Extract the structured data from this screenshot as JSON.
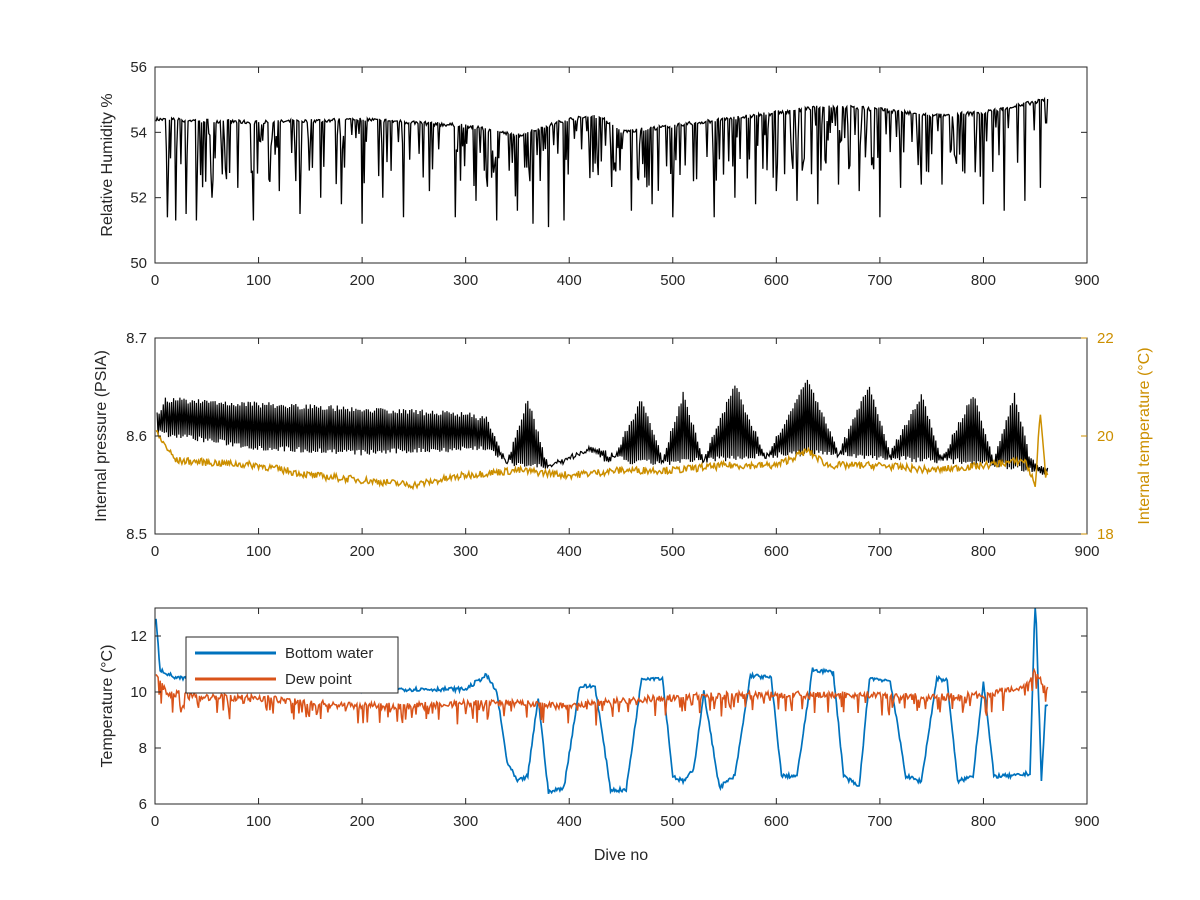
{
  "chart_data": [
    {
      "type": "line",
      "title": "",
      "xlabel": "",
      "ylabel": "Relative Humidity %",
      "xlim": [
        0,
        900
      ],
      "ylim": [
        50,
        56
      ],
      "xticks": [
        "0",
        "100",
        "200",
        "300",
        "400",
        "500",
        "600",
        "700",
        "800",
        "900"
      ],
      "yticks": [
        "50",
        "52",
        "54",
        "56"
      ],
      "grid": false,
      "series": [
        {
          "color": "#000000",
          "baseline": [
            [
              0,
              54.4
            ],
            [
              100,
              54.3
            ],
            [
              200,
              54.4
            ],
            [
              300,
              54.2
            ],
            [
              350,
              53.9
            ],
            [
              400,
              54.4
            ],
            [
              430,
              54.5
            ],
            [
              450,
              54.0
            ],
            [
              500,
              54.2
            ],
            [
              550,
              54.4
            ],
            [
              600,
              54.6
            ],
            [
              650,
              54.8
            ],
            [
              700,
              54.7
            ],
            [
              750,
              54.5
            ],
            [
              800,
              54.6
            ],
            [
              860,
              55.0
            ]
          ],
          "dips": [
            [
              12,
              51.4
            ],
            [
              20,
              51.3
            ],
            [
              30,
              51.5
            ],
            [
              40,
              51.3
            ],
            [
              55,
              52.0
            ],
            [
              80,
              52.3
            ],
            [
              95,
              51.3
            ],
            [
              120,
              52.2
            ],
            [
              140,
              51.5
            ],
            [
              160,
              52.0
            ],
            [
              180,
              51.8
            ],
            [
              200,
              51.2
            ],
            [
              220,
              52.0
            ],
            [
              240,
              51.4
            ],
            [
              265,
              52.2
            ],
            [
              290,
              51.4
            ],
            [
              310,
              51.9
            ],
            [
              330,
              51.3
            ],
            [
              350,
              51.6
            ],
            [
              365,
              51.2
            ],
            [
              380,
              51.1
            ],
            [
              395,
              51.3
            ],
            [
              420,
              52.6
            ],
            [
              445,
              52.8
            ],
            [
              460,
              51.6
            ],
            [
              480,
              51.8
            ],
            [
              500,
              51.4
            ],
            [
              520,
              52.5
            ],
            [
              540,
              51.4
            ],
            [
              560,
              52.0
            ],
            [
              580,
              51.8
            ],
            [
              600,
              52.2
            ],
            [
              620,
              51.9
            ],
            [
              640,
              51.8
            ],
            [
              660,
              52.4
            ],
            [
              680,
              52.2
            ],
            [
              700,
              51.4
            ],
            [
              720,
              52.3
            ],
            [
              740,
              52.4
            ],
            [
              760,
              52.4
            ],
            [
              780,
              52.8
            ],
            [
              800,
              51.8
            ],
            [
              820,
              51.6
            ],
            [
              840,
              51.9
            ],
            [
              855,
              52.3
            ]
          ],
          "values_note": ""
        }
      ]
    },
    {
      "type": "line",
      "title": "",
      "xlabel": "",
      "ylabel": "Internal pressure (PSIA)",
      "ylabel_right": "Internal temperature (°C)",
      "xlim": [
        0,
        900
      ],
      "ylim": [
        8.5,
        8.7
      ],
      "ylim_right": [
        18,
        22
      ],
      "xticks": [
        "0",
        "100",
        "200",
        "300",
        "400",
        "500",
        "600",
        "700",
        "800",
        "900"
      ],
      "yticks": [
        "8.5",
        "8.6",
        "8.7"
      ],
      "yticks_right": [
        "18",
        "20",
        "22"
      ],
      "grid": false,
      "series": [
        {
          "axis": "left",
          "color": "#000000",
          "low": [
            [
              5,
              8.6
            ],
            [
              100,
              8.585
            ],
            [
              200,
              8.58
            ],
            [
              320,
              8.585
            ],
            [
              340,
              8.57
            ],
            [
              380,
              8.565
            ],
            [
              420,
              8.585
            ],
            [
              460,
              8.57
            ],
            [
              500,
              8.57
            ],
            [
              560,
              8.575
            ],
            [
              640,
              8.58
            ],
            [
              700,
              8.575
            ],
            [
              800,
              8.57
            ],
            [
              860,
              8.56
            ]
          ],
          "high": [
            [
              5,
              8.625
            ],
            [
              10,
              8.64
            ],
            [
              100,
              8.635
            ],
            [
              200,
              8.63
            ],
            [
              300,
              8.625
            ],
            [
              320,
              8.62
            ],
            [
              340,
              8.575
            ],
            [
              360,
              8.64
            ],
            [
              380,
              8.57
            ],
            [
              420,
              8.59
            ],
            [
              440,
              8.575
            ],
            [
              470,
              8.64
            ],
            [
              490,
              8.58
            ],
            [
              510,
              8.645
            ],
            [
              530,
              8.58
            ],
            [
              560,
              8.655
            ],
            [
              590,
              8.58
            ],
            [
              630,
              8.66
            ],
            [
              660,
              8.585
            ],
            [
              690,
              8.655
            ],
            [
              710,
              8.585
            ],
            [
              740,
              8.645
            ],
            [
              760,
              8.58
            ],
            [
              790,
              8.645
            ],
            [
              810,
              8.58
            ],
            [
              830,
              8.645
            ],
            [
              845,
              8.58
            ],
            [
              860,
              8.57
            ]
          ]
        },
        {
          "axis": "right",
          "color": "#cc8f00",
          "values": [
            [
              0,
              20.1
            ],
            [
              20,
              19.5
            ],
            [
              100,
              19.4
            ],
            [
              150,
              19.2
            ],
            [
              200,
              19.1
            ],
            [
              250,
              19.0
            ],
            [
              300,
              19.2
            ],
            [
              350,
              19.3
            ],
            [
              400,
              19.2
            ],
            [
              450,
              19.3
            ],
            [
              500,
              19.3
            ],
            [
              550,
              19.4
            ],
            [
              600,
              19.4
            ],
            [
              630,
              19.7
            ],
            [
              650,
              19.4
            ],
            [
              700,
              19.4
            ],
            [
              750,
              19.3
            ],
            [
              800,
              19.4
            ],
            [
              840,
              19.5
            ],
            [
              850,
              19.0
            ],
            [
              855,
              20.5
            ],
            [
              860,
              19.2
            ]
          ]
        }
      ]
    },
    {
      "type": "line",
      "title": "",
      "xlabel": "Dive no",
      "ylabel": "Temperature (°C)",
      "xlim": [
        0,
        900
      ],
      "ylim": [
        6,
        13
      ],
      "xticks": [
        "0",
        "100",
        "200",
        "300",
        "400",
        "500",
        "600",
        "700",
        "800",
        "900"
      ],
      "yticks": [
        "6",
        "8",
        "10",
        "12"
      ],
      "grid": false,
      "legend": "top-left",
      "series": [
        {
          "name": "Bottom water",
          "color": "#0072bd",
          "values": [
            [
              0,
              13.0
            ],
            [
              5,
              10.8
            ],
            [
              20,
              10.5
            ],
            [
              100,
              10.3
            ],
            [
              200,
              10.1
            ],
            [
              300,
              10.1
            ],
            [
              320,
              10.6
            ],
            [
              330,
              10.0
            ],
            [
              340,
              7.5
            ],
            [
              350,
              6.8
            ],
            [
              360,
              7.0
            ],
            [
              370,
              9.8
            ],
            [
              380,
              6.4
            ],
            [
              395,
              6.6
            ],
            [
              410,
              10.2
            ],
            [
              425,
              10.2
            ],
            [
              440,
              6.5
            ],
            [
              455,
              6.5
            ],
            [
              470,
              10.5
            ],
            [
              490,
              10.5
            ],
            [
              500,
              7.0
            ],
            [
              510,
              6.8
            ],
            [
              520,
              7.2
            ],
            [
              530,
              10.0
            ],
            [
              545,
              6.6
            ],
            [
              560,
              7.0
            ],
            [
              575,
              10.6
            ],
            [
              595,
              10.5
            ],
            [
              605,
              7.0
            ],
            [
              620,
              7.0
            ],
            [
              635,
              10.8
            ],
            [
              655,
              10.7
            ],
            [
              665,
              7.0
            ],
            [
              680,
              6.6
            ],
            [
              690,
              10.5
            ],
            [
              710,
              10.4
            ],
            [
              725,
              7.0
            ],
            [
              740,
              6.8
            ],
            [
              755,
              10.5
            ],
            [
              765,
              10.4
            ],
            [
              775,
              6.8
            ],
            [
              790,
              7.0
            ],
            [
              800,
              10.4
            ],
            [
              810,
              7.0
            ],
            [
              830,
              7.0
            ],
            [
              845,
              7.1
            ],
            [
              850,
              13.5
            ],
            [
              856,
              6.8
            ],
            [
              860,
              9.5
            ]
          ]
        },
        {
          "name": "Dew point",
          "color": "#d95319",
          "values": [
            [
              0,
              10.8
            ],
            [
              10,
              10.0
            ],
            [
              50,
              9.8
            ],
            [
              100,
              9.8
            ],
            [
              150,
              9.6
            ],
            [
              200,
              9.5
            ],
            [
              250,
              9.5
            ],
            [
              300,
              9.6
            ],
            [
              350,
              9.6
            ],
            [
              400,
              9.5
            ],
            [
              450,
              9.7
            ],
            [
              500,
              9.8
            ],
            [
              550,
              9.9
            ],
            [
              600,
              9.9
            ],
            [
              650,
              9.9
            ],
            [
              700,
              9.9
            ],
            [
              750,
              9.8
            ],
            [
              800,
              9.9
            ],
            [
              840,
              10.2
            ],
            [
              850,
              10.8
            ],
            [
              860,
              10.1
            ]
          ],
          "noise_amplitude": 0.45
        }
      ]
    }
  ]
}
